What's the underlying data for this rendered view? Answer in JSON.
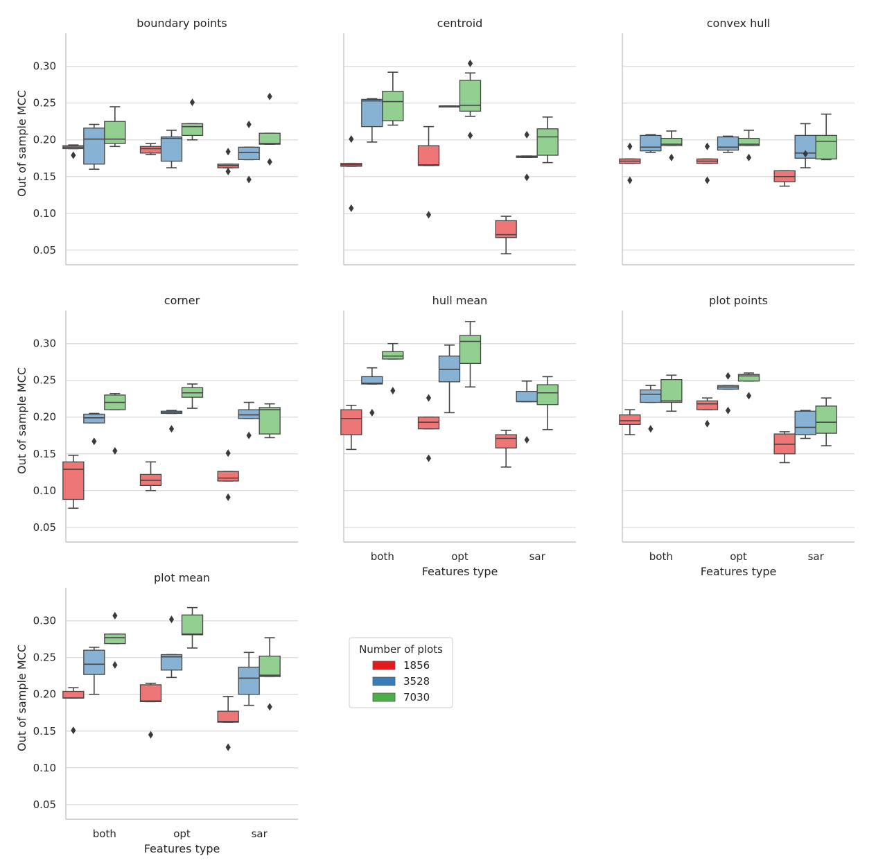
{
  "chart_data": {
    "type": "boxplot",
    "layout": "facet grid, 3 columns",
    "ylabel": "Out of sample MCC",
    "xlabel": "Features type",
    "categories": [
      "both",
      "opt",
      "sar"
    ],
    "ylim": [
      0.03,
      0.345
    ],
    "yticks": [
      "0.05",
      "0.10",
      "0.15",
      "0.20",
      "0.25",
      "0.30"
    ],
    "grid": "horizontal",
    "legend": {
      "title": "Number of plots",
      "placement": "right of bottom-left panel",
      "entries": [
        {
          "label": "1856",
          "color": "#e41a1c"
        },
        {
          "label": "3528",
          "color": "#377eb8"
        },
        {
          "label": "7030",
          "color": "#4daf4a"
        }
      ]
    },
    "panels": [
      {
        "title": "boundary points",
        "groups": [
          [
            {
              "q1": 0.188,
              "med": 0.19,
              "q3": 0.192,
              "lo": 0.188,
              "hi": 0.193,
              "out": [
                0.179
              ]
            },
            {
              "q1": 0.167,
              "med": 0.201,
              "q3": 0.216,
              "lo": 0.16,
              "hi": 0.221,
              "out": []
            },
            {
              "q1": 0.195,
              "med": 0.201,
              "q3": 0.225,
              "lo": 0.191,
              "hi": 0.245,
              "out": []
            }
          ],
          [
            {
              "q1": 0.182,
              "med": 0.188,
              "q3": 0.191,
              "lo": 0.18,
              "hi": 0.195,
              "out": []
            },
            {
              "q1": 0.171,
              "med": 0.202,
              "q3": 0.204,
              "lo": 0.162,
              "hi": 0.213,
              "out": []
            },
            {
              "q1": 0.206,
              "med": 0.218,
              "q3": 0.222,
              "lo": 0.2,
              "hi": 0.222,
              "out": [
                0.251
              ]
            }
          ],
          [
            {
              "q1": 0.162,
              "med": 0.165,
              "q3": 0.167,
              "lo": 0.162,
              "hi": 0.167,
              "out": [
                0.184,
                0.157
              ]
            },
            {
              "q1": 0.173,
              "med": 0.183,
              "q3": 0.19,
              "lo": 0.173,
              "hi": 0.19,
              "out": [
                0.221,
                0.146
              ]
            },
            {
              "q1": 0.194,
              "med": 0.195,
              "q3": 0.209,
              "lo": 0.194,
              "hi": 0.209,
              "out": [
                0.259,
                0.17
              ]
            }
          ]
        ]
      },
      {
        "title": "centroid",
        "groups": [
          [
            {
              "q1": 0.164,
              "med": 0.166,
              "q3": 0.168,
              "lo": 0.164,
              "hi": 0.168,
              "out": [
                0.201,
                0.107
              ]
            },
            {
              "q1": 0.218,
              "med": 0.253,
              "q3": 0.255,
              "lo": 0.197,
              "hi": 0.256,
              "out": []
            },
            {
              "q1": 0.226,
              "med": 0.252,
              "q3": 0.266,
              "lo": 0.22,
              "hi": 0.292,
              "out": []
            }
          ],
          [
            {
              "q1": 0.165,
              "med": 0.166,
              "q3": 0.192,
              "lo": 0.165,
              "hi": 0.218,
              "out": [
                0.098
              ]
            },
            {
              "q1": 0.246,
              "med": 0.246,
              "q3": 0.246,
              "lo": 0.246,
              "hi": 0.246,
              "out": []
            },
            {
              "q1": 0.239,
              "med": 0.247,
              "q3": 0.281,
              "lo": 0.232,
              "hi": 0.291,
              "out": [
                0.304,
                0.206
              ]
            }
          ],
          [
            {
              "q1": 0.067,
              "med": 0.071,
              "q3": 0.09,
              "lo": 0.045,
              "hi": 0.096,
              "out": []
            },
            {
              "q1": 0.176,
              "med": 0.177,
              "q3": 0.178,
              "lo": 0.176,
              "hi": 0.178,
              "out": [
                0.207,
                0.149
              ]
            },
            {
              "q1": 0.179,
              "med": 0.204,
              "q3": 0.215,
              "lo": 0.169,
              "hi": 0.231,
              "out": []
            }
          ]
        ]
      },
      {
        "title": "convex hull",
        "groups": [
          [
            {
              "q1": 0.168,
              "med": 0.171,
              "q3": 0.174,
              "lo": 0.168,
              "hi": 0.174,
              "out": [
                0.191,
                0.145
              ]
            },
            {
              "q1": 0.185,
              "med": 0.19,
              "q3": 0.206,
              "lo": 0.183,
              "hi": 0.207,
              "out": []
            },
            {
              "q1": 0.192,
              "med": 0.194,
              "q3": 0.202,
              "lo": 0.192,
              "hi": 0.212,
              "out": [
                0.176
              ]
            }
          ],
          [
            {
              "q1": 0.168,
              "med": 0.171,
              "q3": 0.174,
              "lo": 0.168,
              "hi": 0.174,
              "out": [
                0.191,
                0.145
              ]
            },
            {
              "q1": 0.186,
              "med": 0.19,
              "q3": 0.204,
              "lo": 0.183,
              "hi": 0.205,
              "out": []
            },
            {
              "q1": 0.192,
              "med": 0.194,
              "q3": 0.202,
              "lo": 0.192,
              "hi": 0.213,
              "out": [
                0.176
              ]
            }
          ],
          [
            {
              "q1": 0.143,
              "med": 0.15,
              "q3": 0.158,
              "lo": 0.137,
              "hi": 0.158,
              "out": []
            },
            {
              "q1": 0.175,
              "med": 0.182,
              "q3": 0.206,
              "lo": 0.162,
              "hi": 0.222,
              "out": [
                0.181
              ]
            },
            {
              "q1": 0.174,
              "med": 0.198,
              "q3": 0.206,
              "lo": 0.173,
              "hi": 0.235,
              "out": []
            }
          ]
        ]
      },
      {
        "title": "corner",
        "groups": [
          [
            {
              "q1": 0.088,
              "med": 0.129,
              "q3": 0.139,
              "lo": 0.076,
              "hi": 0.148,
              "out": []
            },
            {
              "q1": 0.192,
              "med": 0.199,
              "q3": 0.204,
              "lo": 0.192,
              "hi": 0.205,
              "out": [
                0.167
              ]
            },
            {
              "q1": 0.21,
              "med": 0.22,
              "q3": 0.23,
              "lo": 0.21,
              "hi": 0.232,
              "out": [
                0.154
              ]
            }
          ],
          [
            {
              "q1": 0.107,
              "med": 0.114,
              "q3": 0.122,
              "lo": 0.1,
              "hi": 0.139,
              "out": []
            },
            {
              "q1": 0.205,
              "med": 0.206,
              "q3": 0.208,
              "lo": 0.205,
              "hi": 0.209,
              "out": [
                0.184
              ]
            },
            {
              "q1": 0.227,
              "med": 0.233,
              "q3": 0.24,
              "lo": 0.212,
              "hi": 0.245,
              "out": []
            }
          ],
          [
            {
              "q1": 0.113,
              "med": 0.117,
              "q3": 0.126,
              "lo": 0.113,
              "hi": 0.126,
              "out": [
                0.151,
                0.091
              ]
            },
            {
              "q1": 0.198,
              "med": 0.203,
              "q3": 0.21,
              "lo": 0.198,
              "hi": 0.22,
              "out": [
                0.175
              ]
            },
            {
              "q1": 0.177,
              "med": 0.21,
              "q3": 0.213,
              "lo": 0.172,
              "hi": 0.218,
              "out": []
            }
          ]
        ]
      },
      {
        "title": "hull mean",
        "groups": [
          [
            {
              "q1": 0.176,
              "med": 0.198,
              "q3": 0.21,
              "lo": 0.156,
              "hi": 0.216,
              "out": []
            },
            {
              "q1": 0.245,
              "med": 0.246,
              "q3": 0.255,
              "lo": 0.245,
              "hi": 0.267,
              "out": [
                0.206
              ]
            },
            {
              "q1": 0.279,
              "med": 0.283,
              "q3": 0.289,
              "lo": 0.279,
              "hi": 0.3,
              "out": [
                0.236
              ]
            }
          ],
          [
            {
              "q1": 0.184,
              "med": 0.193,
              "q3": 0.2,
              "lo": 0.184,
              "hi": 0.2,
              "out": [
                0.226,
                0.144
              ]
            },
            {
              "q1": 0.248,
              "med": 0.265,
              "q3": 0.283,
              "lo": 0.206,
              "hi": 0.298,
              "out": []
            },
            {
              "q1": 0.273,
              "med": 0.303,
              "q3": 0.311,
              "lo": 0.241,
              "hi": 0.33,
              "out": []
            }
          ],
          [
            {
              "q1": 0.158,
              "med": 0.171,
              "q3": 0.176,
              "lo": 0.132,
              "hi": 0.182,
              "out": []
            },
            {
              "q1": 0.221,
              "med": 0.221,
              "q3": 0.235,
              "lo": 0.221,
              "hi": 0.249,
              "out": [
                0.169
              ]
            },
            {
              "q1": 0.217,
              "med": 0.233,
              "q3": 0.244,
              "lo": 0.183,
              "hi": 0.255,
              "out": []
            }
          ]
        ]
      },
      {
        "title": "plot points",
        "groups": [
          [
            {
              "q1": 0.19,
              "med": 0.195,
              "q3": 0.203,
              "lo": 0.176,
              "hi": 0.21,
              "out": []
            },
            {
              "q1": 0.22,
              "med": 0.231,
              "q3": 0.237,
              "lo": 0.22,
              "hi": 0.243,
              "out": [
                0.184
              ]
            },
            {
              "q1": 0.22,
              "med": 0.222,
              "q3": 0.251,
              "lo": 0.208,
              "hi": 0.257,
              "out": []
            }
          ],
          [
            {
              "q1": 0.21,
              "med": 0.218,
              "q3": 0.222,
              "lo": 0.21,
              "hi": 0.226,
              "out": [
                0.191
              ]
            },
            {
              "q1": 0.238,
              "med": 0.241,
              "q3": 0.243,
              "lo": 0.238,
              "hi": 0.243,
              "out": [
                0.256,
                0.209
              ]
            },
            {
              "q1": 0.249,
              "med": 0.256,
              "q3": 0.258,
              "lo": 0.249,
              "hi": 0.26,
              "out": [
                0.229
              ]
            }
          ],
          [
            {
              "q1": 0.15,
              "med": 0.163,
              "q3": 0.177,
              "lo": 0.138,
              "hi": 0.18,
              "out": []
            },
            {
              "q1": 0.176,
              "med": 0.186,
              "q3": 0.208,
              "lo": 0.171,
              "hi": 0.209,
              "out": []
            },
            {
              "q1": 0.178,
              "med": 0.193,
              "q3": 0.215,
              "lo": 0.161,
              "hi": 0.226,
              "out": []
            }
          ]
        ]
      },
      {
        "title": "plot mean",
        "groups": [
          [
            {
              "q1": 0.195,
              "med": 0.195,
              "q3": 0.204,
              "lo": 0.195,
              "hi": 0.209,
              "out": [
                0.151
              ]
            },
            {
              "q1": 0.227,
              "med": 0.241,
              "q3": 0.26,
              "lo": 0.2,
              "hi": 0.264,
              "out": []
            },
            {
              "q1": 0.269,
              "med": 0.277,
              "q3": 0.282,
              "lo": 0.269,
              "hi": 0.282,
              "out": [
                0.307,
                0.24
              ]
            }
          ],
          [
            {
              "q1": 0.19,
              "med": 0.191,
              "q3": 0.213,
              "lo": 0.19,
              "hi": 0.215,
              "out": [
                0.145
              ]
            },
            {
              "q1": 0.233,
              "med": 0.251,
              "q3": 0.254,
              "lo": 0.223,
              "hi": 0.254,
              "out": [
                0.302
              ]
            },
            {
              "q1": 0.281,
              "med": 0.282,
              "q3": 0.308,
              "lo": 0.263,
              "hi": 0.318,
              "out": []
            }
          ],
          [
            {
              "q1": 0.162,
              "med": 0.163,
              "q3": 0.177,
              "lo": 0.162,
              "hi": 0.197,
              "out": [
                0.128
              ]
            },
            {
              "q1": 0.2,
              "med": 0.222,
              "q3": 0.237,
              "lo": 0.185,
              "hi": 0.257,
              "out": []
            },
            {
              "q1": 0.224,
              "med": 0.226,
              "q3": 0.252,
              "lo": 0.224,
              "hi": 0.277,
              "out": [
                0.183
              ]
            }
          ]
        ]
      }
    ]
  }
}
